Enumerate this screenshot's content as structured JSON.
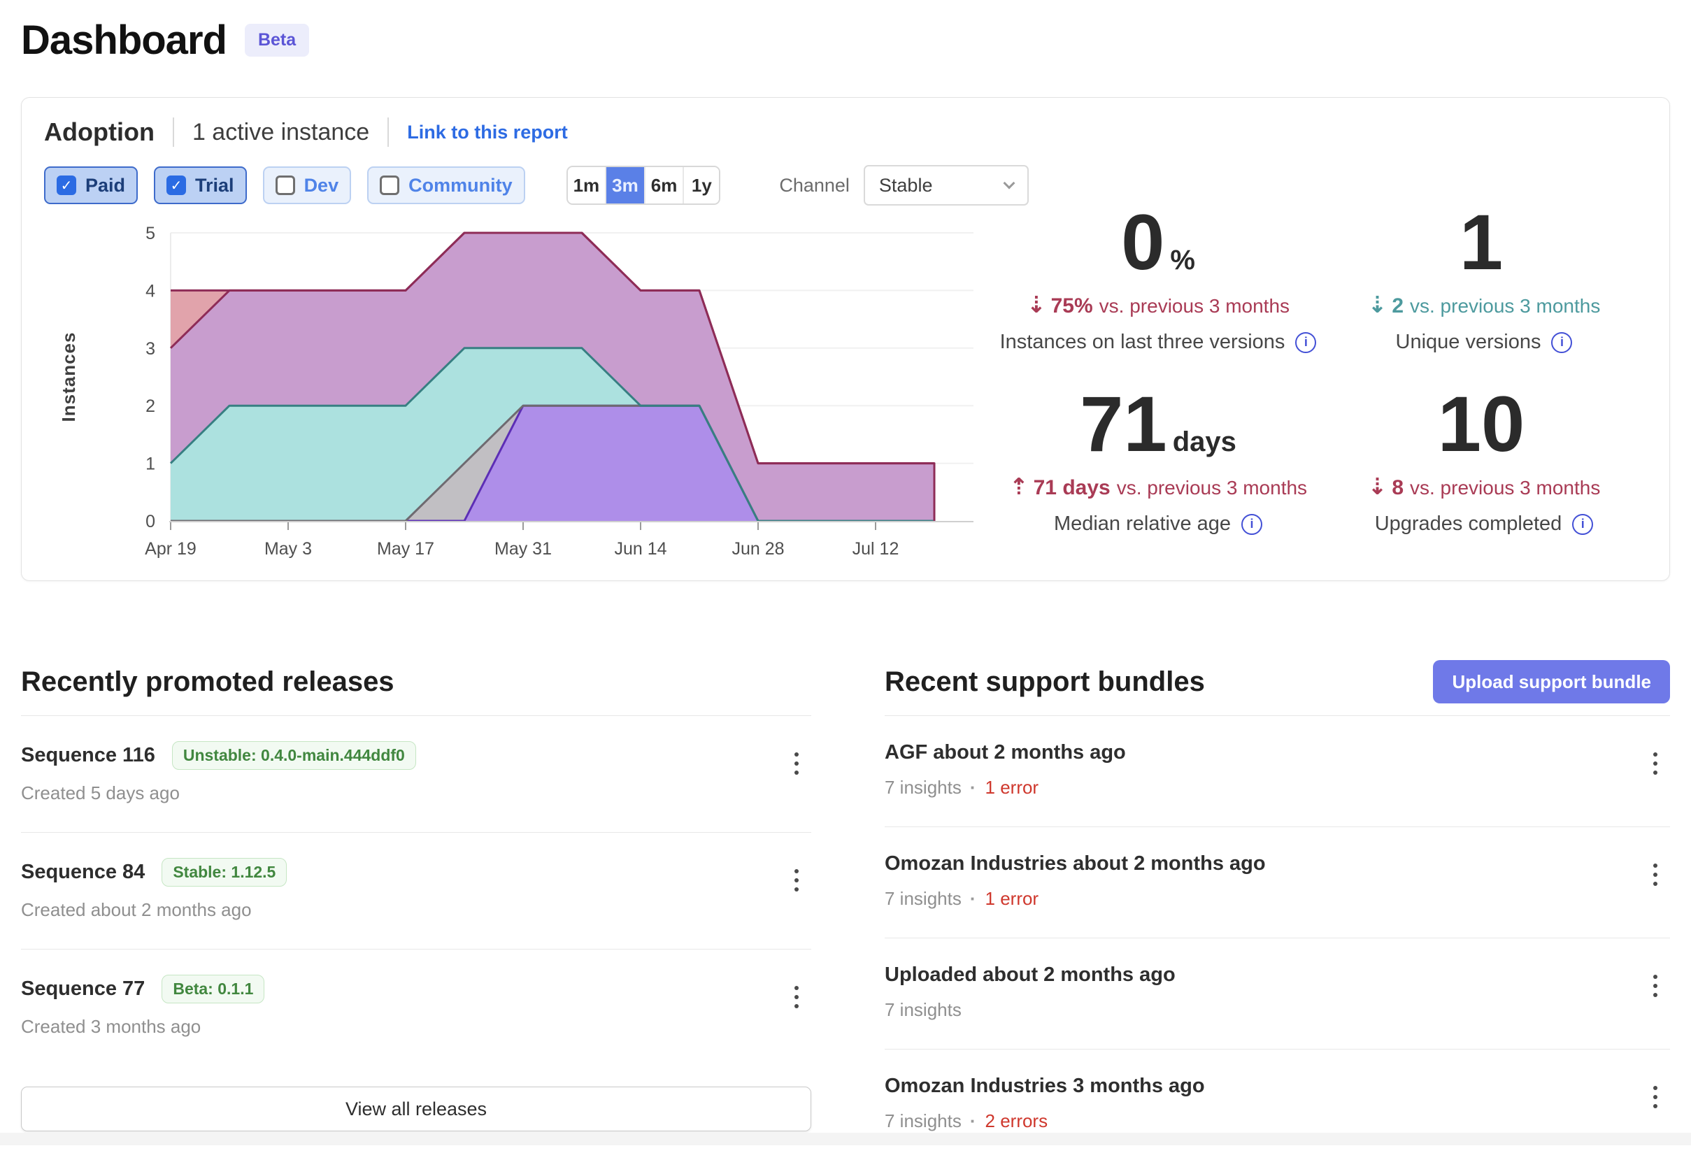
{
  "page": {
    "title": "Dashboard",
    "badge": "Beta"
  },
  "colors": {
    "accent_blue": "#2D6BE3",
    "selected_range_bg": "#5A80E7",
    "upload_button_bg": "#6F79E8",
    "beta_badge_bg": "#ECEDFB",
    "beta_badge_text": "#5B55D6",
    "negative_red": "#A93B55",
    "positive_teal": "#4D9A9E",
    "error_red": "#CF382D",
    "release_badge_green": "#41873F"
  },
  "icons": {
    "trend_up": "⇡",
    "trend_down": "⇣",
    "info": "i",
    "checkmark": "✓",
    "chevron_down": "v",
    "kebab": "⋮"
  },
  "adoption": {
    "title": "Adoption",
    "active_instances": "1 active instance",
    "link": "Link to this report",
    "filters": [
      {
        "label": "Paid",
        "checked": true
      },
      {
        "label": "Trial",
        "checked": true
      },
      {
        "label": "Dev",
        "checked": false
      },
      {
        "label": "Community",
        "checked": false
      }
    ],
    "ranges": [
      {
        "label": "1m",
        "selected": false
      },
      {
        "label": "3m",
        "selected": true
      },
      {
        "label": "6m",
        "selected": false
      },
      {
        "label": "1y",
        "selected": false
      }
    ],
    "channel_label": "Channel",
    "channel_value": "Stable",
    "stats": [
      {
        "value": "0",
        "suffix": "%",
        "arrow": "⇣",
        "tone": "red",
        "delta_value": "75%",
        "delta_text": "vs. previous 3 months",
        "label": "Instances on last three versions"
      },
      {
        "value": "1",
        "suffix": "",
        "arrow": "⇣",
        "tone": "teal",
        "delta_value": "2",
        "delta_text": "vs. previous 3 months",
        "label": "Unique versions"
      },
      {
        "value": "71",
        "suffix": "days",
        "arrow": "⇡",
        "tone": "red",
        "delta_value": "71 days",
        "delta_text": "vs. previous 3 months",
        "label": "Median relative age"
      },
      {
        "value": "10",
        "suffix": "",
        "arrow": "⇣",
        "tone": "red",
        "delta_value": "8",
        "delta_text": "vs. previous 3 months",
        "label": "Upgrades completed"
      }
    ]
  },
  "chart_data": {
    "type": "area",
    "stacked": true,
    "title": "",
    "xlabel": "",
    "ylabel": "Instances",
    "ylim": [
      0,
      5
    ],
    "grid": true,
    "legend": false,
    "x_tick_labels": [
      "Apr 19",
      "May 3",
      "May 17",
      "May 31",
      "Jun 14",
      "Jun 28",
      "Jul 12"
    ],
    "x_weekly": [
      "Apr 19",
      "Apr 26",
      "May 3",
      "May 10",
      "May 17",
      "May 24",
      "May 31",
      "Jun 7",
      "Jun 14",
      "Jun 21",
      "Jun 28",
      "Jul 5",
      "Jul 12",
      "Jul 19"
    ],
    "series": [
      {
        "name": "version-purple",
        "fill": "#AE8EE9",
        "stroke": "#5C2EB5",
        "values": [
          0,
          0,
          0,
          0,
          0,
          0,
          2,
          2,
          2,
          2,
          0,
          0,
          0,
          0
        ]
      },
      {
        "name": "version-gray",
        "fill": "#C1BFC3",
        "stroke": "#6E6A70",
        "values": [
          0,
          0,
          0,
          0,
          0,
          1,
          0,
          0,
          0,
          0,
          0,
          0,
          0,
          0
        ]
      },
      {
        "name": "version-teal",
        "fill": "#ACE1DF",
        "stroke": "#377F82",
        "values": [
          1,
          2,
          2,
          2,
          2,
          2,
          1,
          1,
          0,
          0,
          0,
          0,
          0,
          0
        ]
      },
      {
        "name": "version-pink",
        "fill": "#C89DCE",
        "stroke": "#8E2C57",
        "values": [
          2,
          2,
          2,
          2,
          2,
          2,
          2,
          2,
          2,
          2,
          1,
          1,
          1,
          1
        ],
        "close_right": true
      },
      {
        "name": "version-salmon",
        "fill": "#E1A3AB",
        "stroke": "#8E2C57",
        "values": [
          1,
          0,
          0,
          0,
          0,
          0,
          0,
          0,
          0,
          0,
          0,
          0,
          0,
          0
        ]
      }
    ]
  },
  "releases": {
    "heading": "Recently promoted releases",
    "view_all": "View all releases",
    "items": [
      {
        "title": "Sequence 116",
        "badge": "Unstable: 0.4.0-main.444ddf0",
        "created": "Created 5 days ago"
      },
      {
        "title": "Sequence 84",
        "badge": "Stable: 1.12.5",
        "created": "Created about 2 months ago"
      },
      {
        "title": "Sequence 77",
        "badge": "Beta: 0.1.1",
        "created": "Created 3 months ago"
      }
    ]
  },
  "bundles": {
    "heading": "Recent support bundles",
    "upload_button": "Upload support bundle",
    "items": [
      {
        "title": "AGF about 2 months ago",
        "insights": "7 insights",
        "errors": "1 error"
      },
      {
        "title": "Omozan Industries about 2 months ago",
        "insights": "7 insights",
        "errors": "1 error"
      },
      {
        "title": "Uploaded about 2 months ago",
        "insights": "7 insights",
        "errors": ""
      },
      {
        "title": "Omozan Industries 3 months ago",
        "insights": "7 insights",
        "errors": "2 errors"
      }
    ]
  }
}
